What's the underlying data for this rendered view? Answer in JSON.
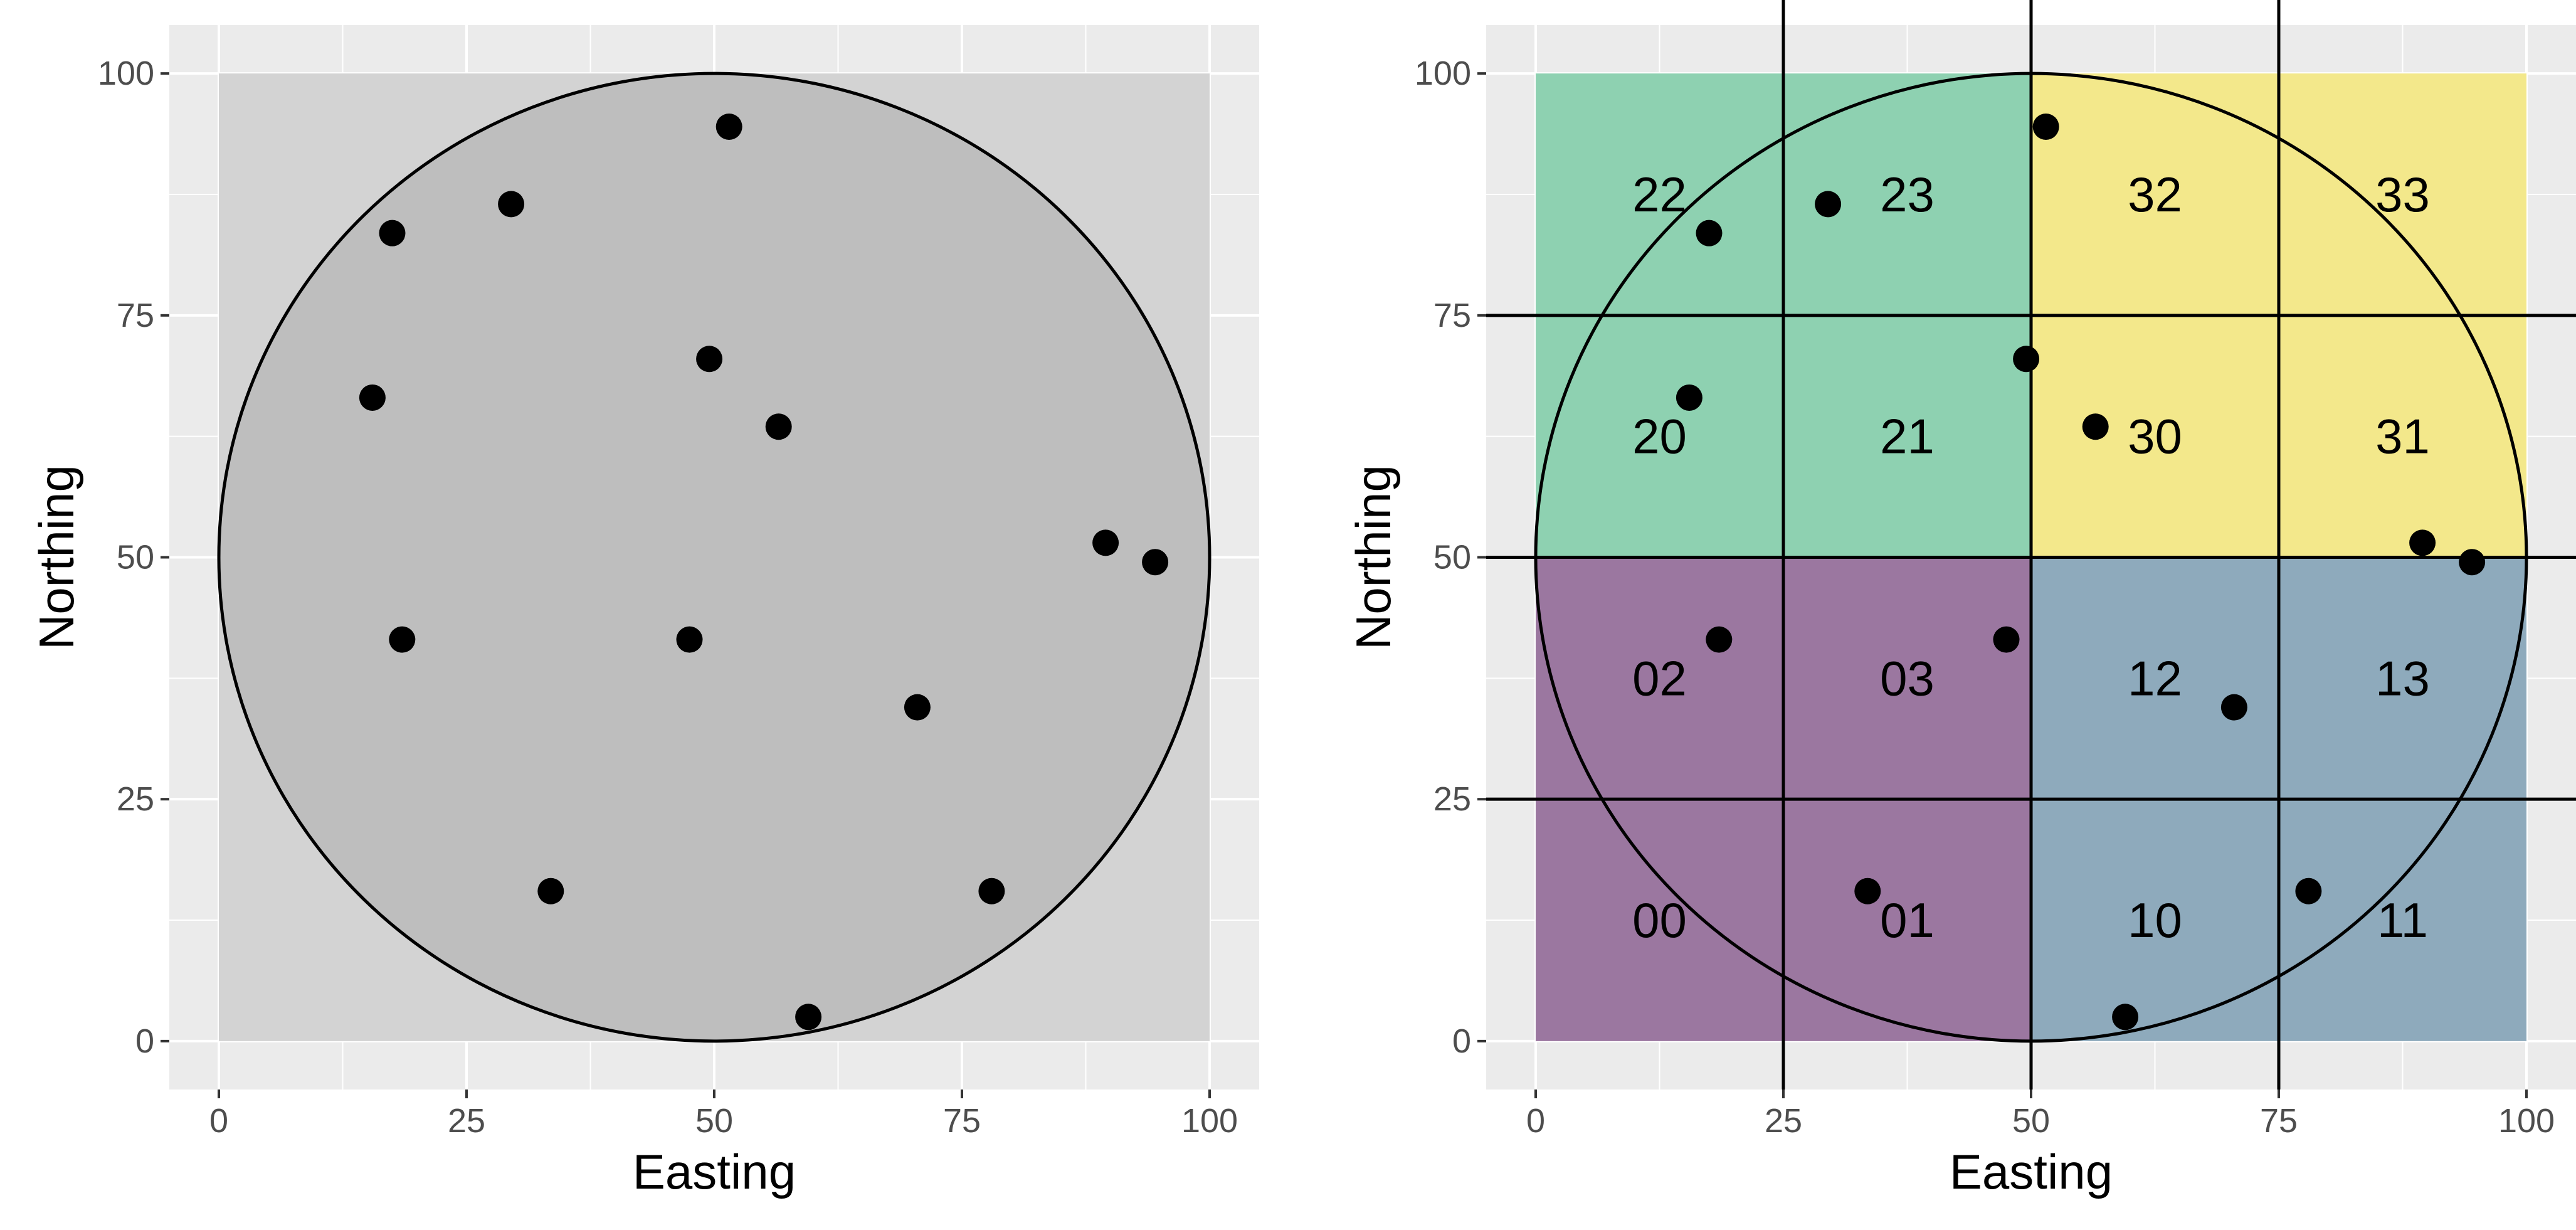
{
  "chart_data": [
    {
      "type": "scatter",
      "title": "",
      "xlabel": "Easting",
      "ylabel": "Northing",
      "xlim": [
        -5,
        105
      ],
      "ylim": [
        -5,
        105
      ],
      "xticks": [
        0,
        25,
        50,
        75,
        100
      ],
      "yticks": [
        0,
        25,
        50,
        75,
        100
      ],
      "xtick_labels": [
        "0",
        "25",
        "50",
        "75",
        "100"
      ],
      "ytick_labels": [
        "0",
        "25",
        "50",
        "75",
        "100"
      ],
      "grid": true,
      "study_area": {
        "xmin": 0,
        "xmax": 100,
        "ymin": 0,
        "ymax": 100,
        "color": "#d3d3d3"
      },
      "circle": {
        "cx": 50,
        "cy": 50,
        "r": 50,
        "fill": "#bebebe"
      },
      "points": [
        {
          "x": 51.5,
          "y": 94.5
        },
        {
          "x": 29.5,
          "y": 86.5
        },
        {
          "x": 17.5,
          "y": 83.5
        },
        {
          "x": 49.5,
          "y": 70.5
        },
        {
          "x": 15.5,
          "y": 66.5
        },
        {
          "x": 56.5,
          "y": 63.5
        },
        {
          "x": 89.5,
          "y": 51.5
        },
        {
          "x": 94.5,
          "y": 49.5
        },
        {
          "x": 18.5,
          "y": 41.5
        },
        {
          "x": 47.5,
          "y": 41.5
        },
        {
          "x": 70.5,
          "y": 34.5
        },
        {
          "x": 33.5,
          "y": 15.5
        },
        {
          "x": 78,
          "y": 15.5
        },
        {
          "x": 59.5,
          "y": 2.5
        }
      ]
    },
    {
      "type": "scatter",
      "title": "",
      "xlabel": "Easting",
      "ylabel": "Northing",
      "xlim": [
        -5,
        105
      ],
      "ylim": [
        -5,
        105
      ],
      "xticks": [
        0,
        25,
        50,
        75,
        100
      ],
      "yticks": [
        0,
        25,
        50,
        75,
        100
      ],
      "xtick_labels": [
        "0",
        "25",
        "50",
        "75",
        "100"
      ],
      "ytick_labels": [
        "0",
        "25",
        "50",
        "75",
        "100"
      ],
      "grid": true,
      "circle": {
        "cx": 50,
        "cy": 50,
        "r": 50
      },
      "quadrants": [
        {
          "xmin": 0,
          "xmax": 50,
          "ymin": 0,
          "ymax": 50,
          "color": "#9b77a0"
        },
        {
          "xmin": 50,
          "xmax": 100,
          "ymin": 0,
          "ymax": 50,
          "color": "#8eaabc"
        },
        {
          "xmin": 0,
          "xmax": 50,
          "ymin": 50,
          "ymax": 100,
          "color": "#8ed1b1"
        },
        {
          "xmin": 50,
          "xmax": 100,
          "ymin": 50,
          "ymax": 100,
          "color": "#f3e88b"
        }
      ],
      "grid_lines": {
        "vertical": [
          25,
          50,
          75
        ],
        "horizontal": [
          25,
          50,
          75
        ]
      },
      "cell_labels": [
        {
          "label": "00",
          "x": 12.5,
          "y": 12.5
        },
        {
          "label": "01",
          "x": 37.5,
          "y": 12.5
        },
        {
          "label": "10",
          "x": 62.5,
          "y": 12.5
        },
        {
          "label": "11",
          "x": 87.5,
          "y": 12.5
        },
        {
          "label": "02",
          "x": 12.5,
          "y": 37.5
        },
        {
          "label": "03",
          "x": 37.5,
          "y": 37.5
        },
        {
          "label": "12",
          "x": 62.5,
          "y": 37.5
        },
        {
          "label": "13",
          "x": 87.5,
          "y": 37.5
        },
        {
          "label": "20",
          "x": 12.5,
          "y": 62.5
        },
        {
          "label": "21",
          "x": 37.5,
          "y": 62.5
        },
        {
          "label": "30",
          "x": 62.5,
          "y": 62.5
        },
        {
          "label": "31",
          "x": 87.5,
          "y": 62.5
        },
        {
          "label": "22",
          "x": 12.5,
          "y": 87.5
        },
        {
          "label": "23",
          "x": 37.5,
          "y": 87.5
        },
        {
          "label": "32",
          "x": 62.5,
          "y": 87.5
        },
        {
          "label": "33",
          "x": 87.5,
          "y": 87.5
        }
      ],
      "points": [
        {
          "x": 51.5,
          "y": 94.5
        },
        {
          "x": 29.5,
          "y": 86.5
        },
        {
          "x": 17.5,
          "y": 83.5
        },
        {
          "x": 49.5,
          "y": 70.5
        },
        {
          "x": 15.5,
          "y": 66.5
        },
        {
          "x": 56.5,
          "y": 63.5
        },
        {
          "x": 89.5,
          "y": 51.5
        },
        {
          "x": 94.5,
          "y": 49.5
        },
        {
          "x": 18.5,
          "y": 41.5
        },
        {
          "x": 47.5,
          "y": 41.5
        },
        {
          "x": 70.5,
          "y": 34.5
        },
        {
          "x": 33.5,
          "y": 15.5
        },
        {
          "x": 78,
          "y": 15.5
        },
        {
          "x": 59.5,
          "y": 2.5
        }
      ]
    }
  ]
}
